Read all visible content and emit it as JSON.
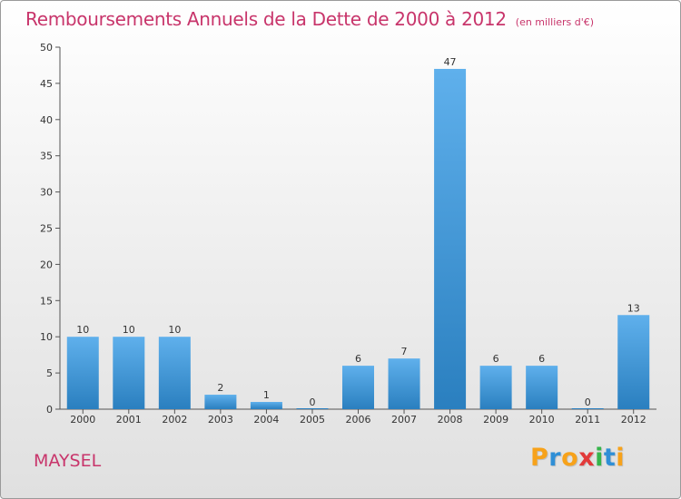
{
  "title": "Remboursements Annuels de la Dette de 2000 à 2012",
  "unit": "(en milliers d'€)",
  "commune": "MAYSEL",
  "logo": {
    "letters": [
      "P",
      "r",
      "o",
      "x",
      "i",
      "t",
      "i"
    ],
    "colors": [
      "#f7a21a",
      "#2f8fd6",
      "#f7a21a",
      "#e23a3a",
      "#35b54a",
      "#2f8fd6",
      "#f7a21a"
    ]
  },
  "colors": {
    "bar_top": "#5fb0ec",
    "bar_bottom": "#2a7fbf",
    "title": "#c8356b"
  },
  "chart_data": {
    "type": "bar",
    "title": "Remboursements Annuels de la Dette de 2000 à 2012",
    "categories": [
      "2000",
      "2001",
      "2002",
      "2003",
      "2004",
      "2005",
      "2006",
      "2007",
      "2008",
      "2009",
      "2010",
      "2011",
      "2012"
    ],
    "values": [
      10,
      10,
      10,
      2,
      1,
      0,
      6,
      7,
      47,
      6,
      6,
      0,
      13
    ],
    "ylim": [
      0,
      50
    ],
    "yticks": [
      0,
      5,
      10,
      15,
      20,
      25,
      30,
      35,
      40,
      45,
      50
    ],
    "grid": false,
    "xlabel": "",
    "ylabel": ""
  }
}
